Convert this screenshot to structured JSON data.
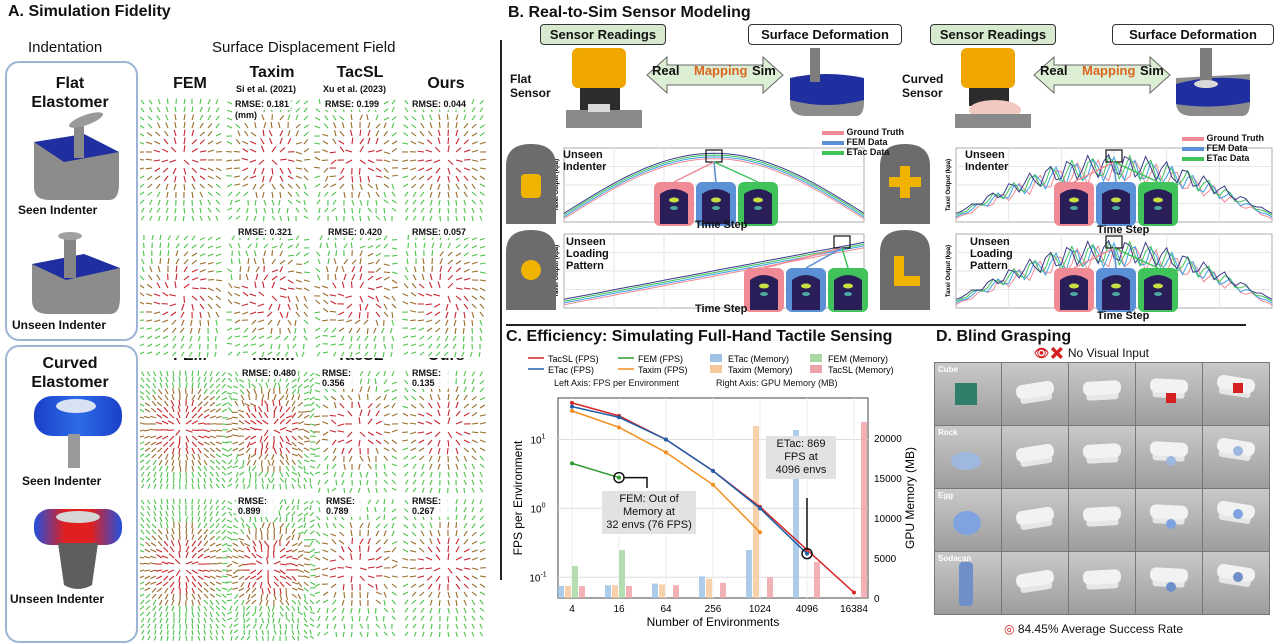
{
  "panelA": {
    "title": "A. Simulation Fidelity",
    "indentation_label": "Indentation",
    "field_label": "Surface Displacement Field",
    "flat_label": "Flat Elastomer",
    "curved_label": "Curved Elastomer",
    "seen_label": "Seen Indenter",
    "unseen_label": "Unseen Indenter",
    "methods": [
      "FEM",
      "Taxim",
      "TacSL",
      "Ours"
    ],
    "cite_taxim": "Si et al. (2021)",
    "cite_tacsl": "Xu et al. (2023)",
    "unit": "(mm)",
    "flat_rmse": {
      "seen": [
        "RMSE: 0.181",
        "RMSE: 0.199",
        "RMSE: 0.044"
      ],
      "unseen": [
        "RMSE: 0.321",
        "RMSE: 0.420",
        "RMSE: 0.057"
      ]
    },
    "curved_rmse": {
      "seen": [
        "RMSE: 0.480",
        "RMSE: 0.356",
        "RMSE: 0.135"
      ],
      "unseen": [
        "RMSE: 0.899",
        "RMSE: 0.789",
        "RMSE: 0.267"
      ]
    }
  },
  "panelB": {
    "title": "B. Real-to-Sim Sensor Modeling",
    "sensor_readings": "Sensor Readings",
    "surface_deformation": "Surface Deformation",
    "flat_sensor": "Flat Sensor",
    "curved_sensor": "Curved Sensor",
    "real": "Real",
    "mapping": "Mapping",
    "sim": "Sim",
    "unseen_indenter": "Unseen Indenter",
    "unseen_loading": "Unseen Loading Pattern",
    "time_step": "Time Step",
    "ylabel": "Taxel Output (kpa)",
    "legend": [
      "Ground Truth",
      "FEM Data",
      "ETac Data"
    ]
  },
  "panelC": {
    "title": "C. Efficiency: Simulating Full-Hand Tactile Sensing",
    "left_axis_note": "Left Axis: FPS per Environment",
    "right_axis_note": "Right Axis: GPU Memory (MB)",
    "annot_fem_1": "FEM: Out of",
    "annot_fem_2": "Memory at",
    "annot_fem_3": "32 envs (76 FPS)",
    "annot_etac_1": "ETac: 869",
    "annot_etac_2": "FPS at",
    "annot_etac_3": "4096 envs"
  },
  "panelD": {
    "title": "D. Blind Grasping",
    "no_visual": "No Visual Input",
    "objects": [
      "Cube",
      "Rock",
      "Egg",
      "Sodacan"
    ],
    "success": "84.45% Average Success Rate"
  },
  "chart_data": {
    "type": "line",
    "title": "",
    "xlabel": "Number of Environments",
    "ylabel": "FPS per Environment",
    "y2label": "GPU Memory (MB)",
    "categories": [
      "4",
      "16",
      "64",
      "256",
      "1024",
      "4096",
      "16384"
    ],
    "yscale": "log",
    "ylim": [
      0.05,
      40
    ],
    "y2lim": [
      0,
      25000
    ],
    "y_ticks": [
      "10^-1",
      "10^0",
      "10^1"
    ],
    "y2_ticks": [
      0,
      5000,
      10000,
      15000,
      20000
    ],
    "grid": true,
    "legend_position": "top-left",
    "series": [
      {
        "name": "TacSL (FPS)",
        "kind": "line",
        "color": "#d62728",
        "values": [
          34,
          22,
          10,
          3.5,
          1.05,
          0.25,
          0.06
        ]
      },
      {
        "name": "ETac (FPS)",
        "kind": "line",
        "color": "#1f5fa8",
        "values": [
          30,
          21,
          10,
          3.5,
          1.0,
          0.22,
          null
        ]
      },
      {
        "name": "FEM (FPS)",
        "kind": "line",
        "color": "#2e9a2e",
        "values": [
          4.5,
          2.8,
          null,
          null,
          null,
          null,
          null
        ]
      },
      {
        "name": "Taxim (FPS)",
        "kind": "line",
        "color": "#f28e1c",
        "values": [
          26,
          15,
          6.5,
          2.2,
          0.45,
          null,
          null
        ]
      },
      {
        "name": "ETac (Memory)",
        "kind": "bar",
        "color": "#9ec3e6",
        "values": [
          1500,
          1600,
          1800,
          2700,
          6000,
          21000,
          null
        ]
      },
      {
        "name": "Taxim (Memory)",
        "kind": "bar",
        "color": "#f5c99c",
        "values": [
          1500,
          1600,
          1700,
          2400,
          21500,
          null,
          null
        ]
      },
      {
        "name": "FEM (Memory)",
        "kind": "bar",
        "color": "#a9d8a4",
        "values": [
          4000,
          6000,
          null,
          null,
          null,
          null,
          null
        ]
      },
      {
        "name": "TacSL (Memory)",
        "kind": "bar",
        "color": "#eea3a8",
        "values": [
          1500,
          1500,
          1600,
          1900,
          2600,
          4500,
          22000
        ]
      }
    ]
  }
}
